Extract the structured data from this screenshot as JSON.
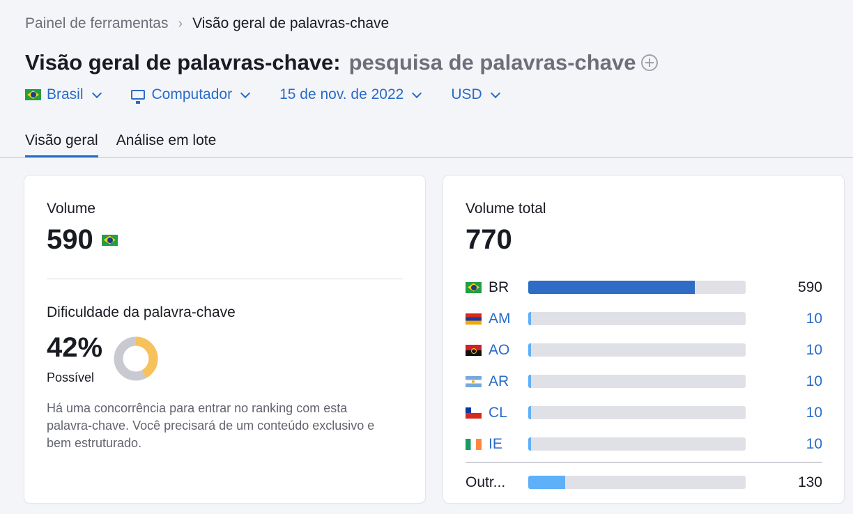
{
  "breadcrumb": {
    "parent": "Painel de ferramentas",
    "current": "Visão geral de palavras-chave"
  },
  "header": {
    "title": "Visão geral de palavras-chave:",
    "keyword": "pesquisa de palavras-chave",
    "add_icon": "plus-circle-icon"
  },
  "filters": {
    "country": "Brasil",
    "device": "Computador",
    "date": "15 de nov. de 2022",
    "currency": "USD"
  },
  "tabs": [
    {
      "label": "Visão geral",
      "active": true
    },
    {
      "label": "Análise em lote",
      "active": false
    }
  ],
  "volume": {
    "label": "Volume",
    "value": "590"
  },
  "difficulty": {
    "label": "Dificuldade da palavra-chave",
    "value": "42%",
    "percent": 42,
    "level": "Possível",
    "description": "Há uma concorrência para entrar no ranking com esta palavra-chave. Você precisará de um conteúdo exclusivo e bem estruturado.",
    "colors": {
      "filled": "#f7c15b",
      "empty": "#c9cad1"
    }
  },
  "total_volume": {
    "label": "Volume total",
    "value": "770",
    "total": 770,
    "countries": [
      {
        "code": "BR",
        "flag": "br",
        "value": "590",
        "num": 590,
        "color": "#2e6cc5",
        "link": false
      },
      {
        "code": "AM",
        "flag": "am",
        "value": "10",
        "num": 10,
        "color": "#5eb0f8",
        "link": true
      },
      {
        "code": "AO",
        "flag": "ao",
        "value": "10",
        "num": 10,
        "color": "#5eb0f8",
        "link": true
      },
      {
        "code": "AR",
        "flag": "ar",
        "value": "10",
        "num": 10,
        "color": "#5eb0f8",
        "link": true
      },
      {
        "code": "CL",
        "flag": "cl",
        "value": "10",
        "num": 10,
        "color": "#5eb0f8",
        "link": true
      },
      {
        "code": "IE",
        "flag": "ie",
        "value": "10",
        "num": 10,
        "color": "#5eb0f8",
        "link": true
      }
    ],
    "others": {
      "label": "Outr...",
      "value": "130",
      "num": 130,
      "color": "#5eb0f8"
    }
  }
}
